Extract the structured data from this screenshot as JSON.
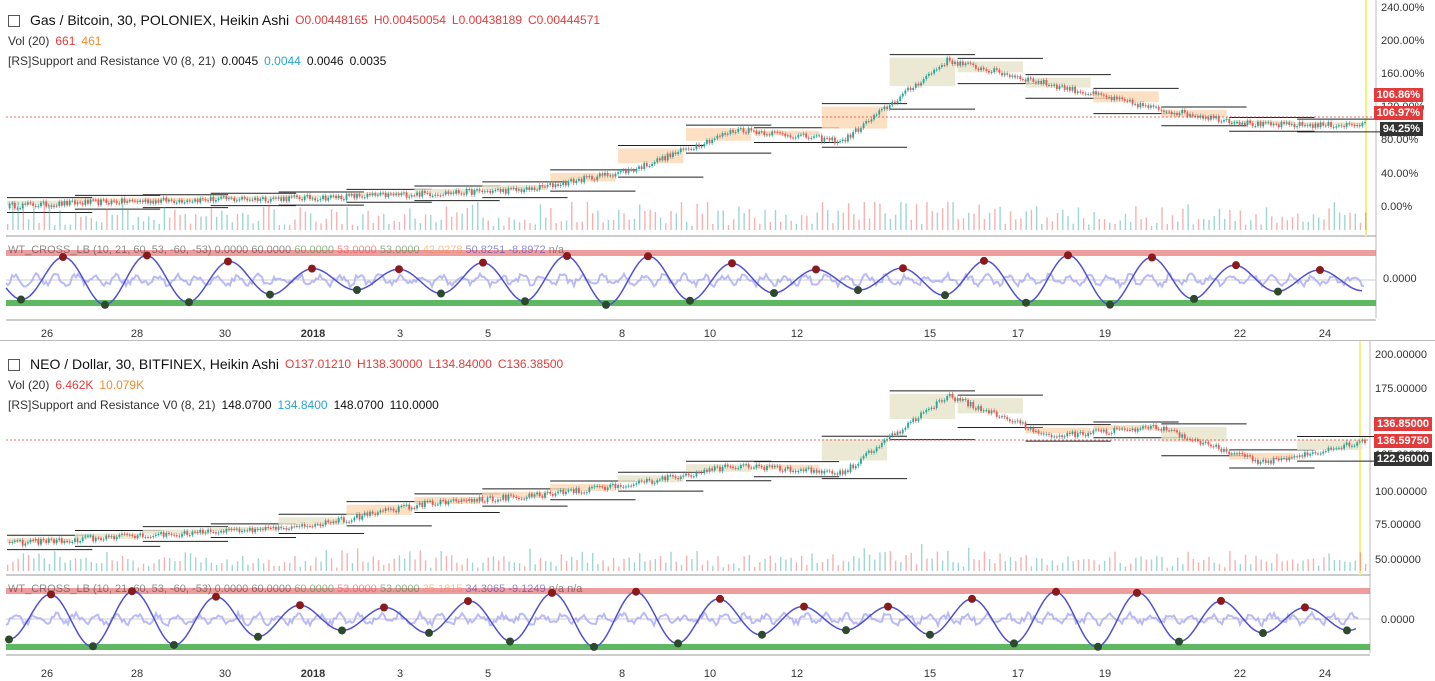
{
  "panes": [
    {
      "title": "Gas / Bitcoin, 30, POLONIEX, Heikin Ashi",
      "ohlc": {
        "o": "O0.00448165",
        "h": "H0.00450054",
        "l": "L0.00438189",
        "c": "C0.00444571"
      },
      "vol": {
        "label": "Vol (20)",
        "v1": "661",
        "v2": "461"
      },
      "sr": {
        "label": "[RS]Support and Resistance V0 (8, 21)",
        "v1": "0.0045",
        "v2": "0.0044",
        "v3": "0.0046",
        "v4": "0.0035"
      },
      "yticks": [
        "240.00%",
        "200.00%",
        "160.00%",
        "120.00%",
        "80.00%",
        "40.00%",
        "0.00%"
      ],
      "tags": [
        {
          "text": "106.86%",
          "color": "#e33b3b"
        },
        {
          "text": "106.97%",
          "color": "#e33b3b"
        },
        {
          "text": "94.25%",
          "color": "#333333"
        }
      ],
      "osc_label": "WT_CROSS_LB (10, 21, 60, 53, -60, -53)",
      "osc_vals": [
        "0.0000",
        "60.0000",
        "60.0000",
        "53.0000",
        "53.0000",
        "42.0278",
        "50.8251",
        "-8.8972",
        "n/a"
      ],
      "osc_zero": "0.0000"
    },
    {
      "title": "NEO / Dollar, 30, BITFINEX, Heikin Ashi",
      "ohlc": {
        "o": "O137.01210",
        "h": "H138.30000",
        "l": "L134.84000",
        "c": "C136.38500"
      },
      "vol": {
        "label": "Vol (20)",
        "v1": "6.462K",
        "v2": "10.079K"
      },
      "sr": {
        "label": "[RS]Support and Resistance V0 (8, 21)",
        "v1": "148.0700",
        "v2": "134.8400",
        "v3": "148.0700",
        "v4": "110.0000"
      },
      "yticks": [
        "200.00000",
        "175.00000",
        "150.00000",
        "125.00000",
        "100.00000",
        "75.00000",
        "50.00000"
      ],
      "tags": [
        {
          "text": "136.85000",
          "color": "#e33b3b"
        },
        {
          "text": "136.59750",
          "color": "#e33b3b"
        },
        {
          "text": "122.96000",
          "color": "#333333"
        }
      ],
      "osc_label": "WT_CROSS_LB (10, 21, 60, 53, -60, -53)",
      "osc_vals": [
        "0.0000",
        "60.0000",
        "60.0000",
        "53.0000",
        "53.0000",
        "35.1815",
        "34.3065",
        "-9.1249",
        "n/a",
        "n/a"
      ],
      "osc_zero": "0.0000"
    }
  ],
  "dates": [
    "26",
    "28",
    "30",
    "2018",
    "3",
    "5",
    "8",
    "10",
    "12",
    "15",
    "17",
    "19",
    "22",
    "24"
  ],
  "colors": {
    "up": "#26a69a",
    "down": "#ef5350",
    "support": "#4caf50",
    "resistance": "#e57373",
    "wave": "#5050d0",
    "wave_light": "#a9a9f5",
    "box_orange": "#fcd7b4",
    "box_tan": "#e6e4c8",
    "hline": "#e33b3b"
  },
  "chart_data": [
    {
      "type": "line",
      "title": "Gas / Bitcoin, 30, POLONIEX, Heikin Ashi",
      "xlabel": "",
      "ylabel": "",
      "x": [
        "26",
        "28",
        "30",
        "2018",
        "3",
        "5",
        "8",
        "10",
        "12",
        "15",
        "17",
        "19",
        "22",
        "24"
      ],
      "series": [
        {
          "name": "",
          "values": [
            0,
            5,
            8,
            10,
            15,
            20,
            45,
            95,
            80,
            180,
            150,
            120,
            100,
            100
          ]
        }
      ],
      "ylim": [
        -20,
        240
      ]
    },
    {
      "type": "line",
      "title": "NEO / Dollar, 30, BITFINEX, Heikin Ashi",
      "xlabel": "",
      "ylabel": "",
      "x": [
        "26",
        "28",
        "30",
        "2018",
        "3",
        "5",
        "8",
        "10",
        "12",
        "15",
        "17",
        "19",
        "22",
        "24"
      ],
      "series": [
        {
          "name": "",
          "values": [
            57,
            62,
            66,
            72,
            88,
            94,
            103,
            118,
            112,
            172,
            140,
            148,
            120,
            136
          ]
        }
      ],
      "ylim": [
        42,
        205
      ]
    }
  ]
}
